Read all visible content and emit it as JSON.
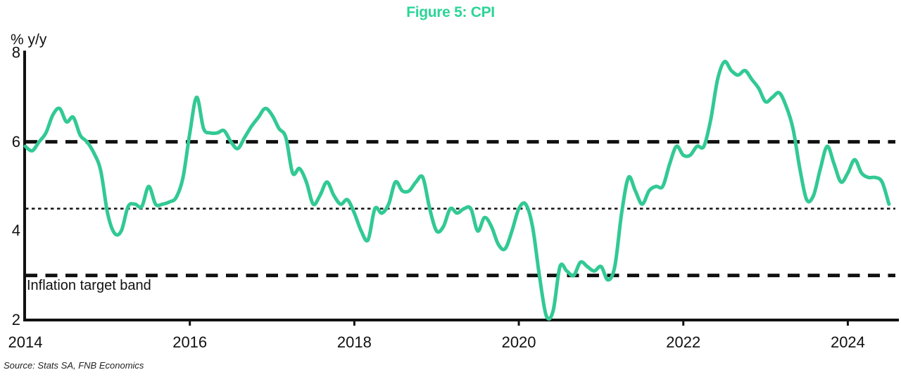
{
  "title": "Figure 5: CPI",
  "source": "Source: Stats SA, FNB Economics",
  "colors": {
    "title_green": "#2bd596",
    "line_green": "#32c994",
    "axis_black": "#111111"
  },
  "chart_data": {
    "type": "line",
    "title": "Figure 5: CPI",
    "xlabel": "",
    "ylabel": "% y/y",
    "ylim": [
      2,
      8
    ],
    "grid": false,
    "legend": "none",
    "x_start": "2014-01",
    "x_end": "2024-07",
    "x_frequency": "monthly",
    "x_tick_labels": [
      "2014",
      "2016",
      "2018",
      "2020",
      "2022",
      "2024"
    ],
    "y_tick_labels": [
      "2",
      "4",
      "6",
      "8"
    ],
    "y_tick_values": [
      2,
      4,
      6,
      8
    ],
    "reference_lines": [
      {
        "value": 6,
        "style": "dashed",
        "label": ""
      },
      {
        "value": 4.5,
        "style": "dotted",
        "label": ""
      },
      {
        "value": 3,
        "style": "dashed",
        "label": "Inflation target band"
      }
    ],
    "series": [
      {
        "name": "CPI % y/y",
        "values": [
          5.9,
          5.8,
          6.0,
          6.2,
          6.6,
          6.75,
          6.45,
          6.55,
          6.15,
          6.0,
          5.75,
          5.35,
          4.4,
          3.95,
          4.0,
          4.55,
          4.6,
          4.55,
          5.0,
          4.6,
          4.6,
          4.65,
          4.75,
          5.2,
          6.2,
          7.0,
          6.3,
          6.2,
          6.2,
          6.25,
          6.0,
          5.85,
          6.1,
          6.35,
          6.55,
          6.75,
          6.6,
          6.3,
          6.1,
          5.3,
          5.4,
          5.1,
          4.6,
          4.8,
          5.1,
          4.8,
          4.6,
          4.7,
          4.4,
          4.0,
          3.8,
          4.5,
          4.4,
          4.6,
          5.1,
          4.9,
          4.9,
          5.1,
          5.2,
          4.5,
          4.0,
          4.1,
          4.5,
          4.4,
          4.5,
          4.5,
          4.0,
          4.3,
          4.1,
          3.7,
          3.6,
          4.0,
          4.5,
          4.6,
          4.1,
          3.0,
          2.1,
          2.2,
          3.2,
          3.1,
          3.0,
          3.3,
          3.2,
          3.1,
          3.2,
          2.9,
          3.2,
          4.4,
          5.2,
          4.9,
          4.6,
          4.9,
          5.0,
          5.0,
          5.5,
          5.9,
          5.7,
          5.7,
          5.9,
          5.9,
          6.5,
          7.4,
          7.8,
          7.6,
          7.5,
          7.6,
          7.4,
          7.2,
          6.9,
          7.0,
          7.1,
          6.8,
          6.3,
          5.4,
          4.7,
          4.8,
          5.4,
          5.9,
          5.5,
          5.1,
          5.3,
          5.6,
          5.3,
          5.2,
          5.2,
          5.1,
          4.6
        ]
      }
    ]
  }
}
